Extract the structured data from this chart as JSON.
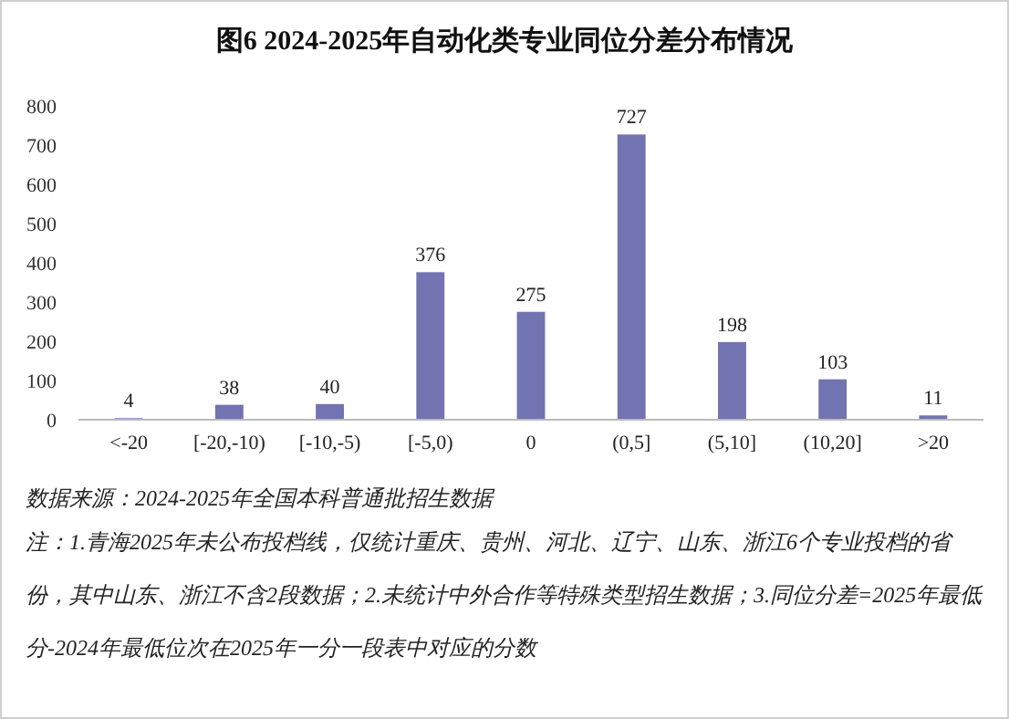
{
  "chart_data": {
    "type": "bar",
    "title": "图6  2024-2025年自动化类专业同位分差分布情况",
    "categories": [
      "<-20",
      "[-20,-10)",
      "[-10,-5)",
      "[-5,0)",
      "0",
      "(0,5]",
      "(5,10]",
      "(10,20]",
      ">20"
    ],
    "values": [
      4,
      38,
      40,
      376,
      275,
      727,
      198,
      103,
      11
    ],
    "color": "#7174b0",
    "ylim": [
      0,
      800
    ],
    "yticks": [
      0,
      100,
      200,
      300,
      400,
      500,
      600,
      700,
      800
    ],
    "data_labels": true,
    "annotations": [
      "数据来源：2024-2025年全国本科普通批招生数据",
      "注：1.青海2025年未公布投档线，仅统计重庆、贵州、河北、辽宁、山东、浙江6个专业投档的省份，其中山东、浙江不含2段数据；2.未统计中外合作等特殊类型招生数据；3.同位分差=2025年最低分-2024年最低位次在2025年一分一段表中对应的分数"
    ]
  }
}
